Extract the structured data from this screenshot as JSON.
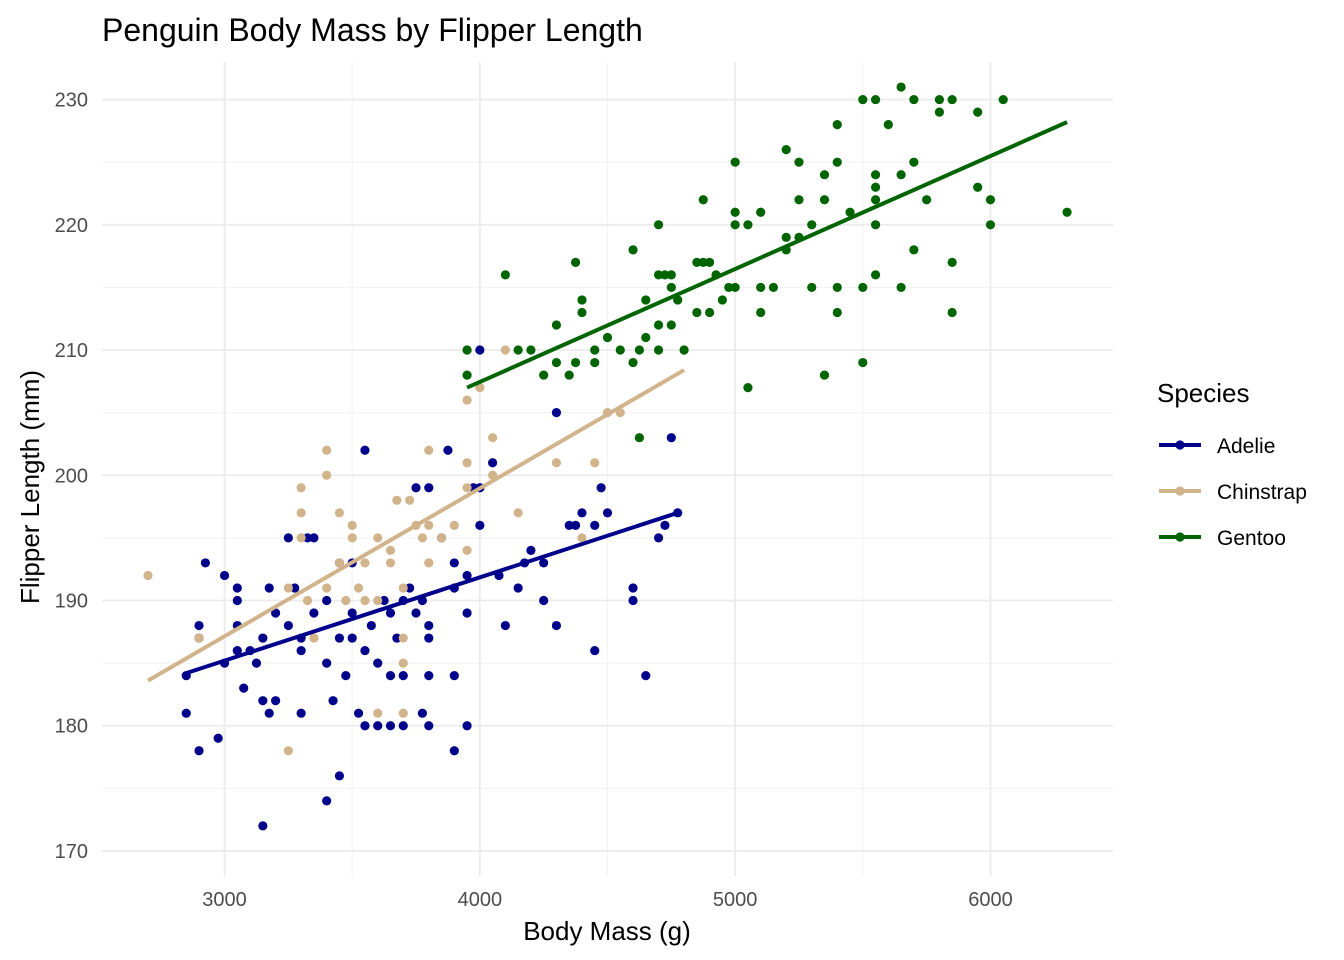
{
  "chart_data": {
    "type": "scatter",
    "title": "Penguin Body Mass by Flipper Length",
    "xlabel": "Body Mass (g)",
    "ylabel": "Flipper Length (mm)",
    "xlim": [
      2520,
      6480
    ],
    "ylim": [
      168,
      233
    ],
    "x_ticks": [
      3000,
      4000,
      5000,
      6000
    ],
    "y_ticks": [
      170,
      180,
      190,
      200,
      210,
      220,
      230
    ],
    "grid": true,
    "legend": {
      "title": "Species",
      "position": "right"
    },
    "series": [
      {
        "name": "Adelie",
        "color": "#00008b",
        "trend": [
          [
            2850,
            184.2
          ],
          [
            4775,
            197.0
          ]
        ],
        "points": [
          [
            2850,
            184
          ],
          [
            2850,
            181
          ],
          [
            2900,
            188
          ],
          [
            2900,
            187
          ],
          [
            2900,
            178
          ],
          [
            2925,
            193
          ],
          [
            2975,
            179
          ],
          [
            3000,
            185
          ],
          [
            3000,
            192
          ],
          [
            3050,
            191
          ],
          [
            3050,
            190
          ],
          [
            3050,
            188
          ],
          [
            3050,
            186
          ],
          [
            3075,
            183
          ],
          [
            3100,
            186
          ],
          [
            3125,
            185
          ],
          [
            3150,
            187
          ],
          [
            3150,
            182
          ],
          [
            3150,
            172
          ],
          [
            3175,
            191
          ],
          [
            3175,
            181
          ],
          [
            3200,
            189
          ],
          [
            3200,
            182
          ],
          [
            3250,
            195
          ],
          [
            3250,
            188
          ],
          [
            3275,
            191
          ],
          [
            3300,
            187
          ],
          [
            3300,
            186
          ],
          [
            3300,
            181
          ],
          [
            3325,
            195
          ],
          [
            3350,
            189
          ],
          [
            3350,
            195
          ],
          [
            3400,
            190
          ],
          [
            3400,
            185
          ],
          [
            3400,
            174
          ],
          [
            3425,
            182
          ],
          [
            3450,
            187
          ],
          [
            3450,
            193
          ],
          [
            3450,
            176
          ],
          [
            3475,
            184
          ],
          [
            3500,
            189
          ],
          [
            3500,
            193
          ],
          [
            3500,
            187
          ],
          [
            3525,
            181
          ],
          [
            3550,
            202
          ],
          [
            3550,
            180
          ],
          [
            3550,
            186
          ],
          [
            3575,
            188
          ],
          [
            3600,
            180
          ],
          [
            3600,
            185
          ],
          [
            3625,
            190
          ],
          [
            3650,
            189
          ],
          [
            3650,
            184
          ],
          [
            3650,
            180
          ],
          [
            3675,
            187
          ],
          [
            3700,
            190
          ],
          [
            3700,
            184
          ],
          [
            3700,
            180
          ],
          [
            3725,
            191
          ],
          [
            3750,
            199
          ],
          [
            3750,
            189
          ],
          [
            3775,
            190
          ],
          [
            3775,
            181
          ],
          [
            3800,
            199
          ],
          [
            3800,
            188
          ],
          [
            3800,
            187
          ],
          [
            3800,
            184
          ],
          [
            3800,
            180
          ],
          [
            3850,
            195
          ],
          [
            3875,
            202
          ],
          [
            3900,
            193
          ],
          [
            3900,
            191
          ],
          [
            3900,
            184
          ],
          [
            3900,
            178
          ],
          [
            3950,
            192
          ],
          [
            3950,
            189
          ],
          [
            3950,
            180
          ],
          [
            3975,
            199
          ],
          [
            4000,
            210
          ],
          [
            4000,
            199
          ],
          [
            4000,
            196
          ],
          [
            4050,
            201
          ],
          [
            4075,
            192
          ],
          [
            4100,
            188
          ],
          [
            4150,
            191
          ],
          [
            4175,
            193
          ],
          [
            4200,
            194
          ],
          [
            4250,
            193
          ],
          [
            4250,
            190
          ],
          [
            4300,
            205
          ],
          [
            4300,
            188
          ],
          [
            4350,
            196
          ],
          [
            4375,
            196
          ],
          [
            4400,
            197
          ],
          [
            4450,
            196
          ],
          [
            4450,
            186
          ],
          [
            4475,
            199
          ],
          [
            4500,
            197
          ],
          [
            4600,
            191
          ],
          [
            4600,
            190
          ],
          [
            4650,
            184
          ],
          [
            4700,
            195
          ],
          [
            4725,
            196
          ],
          [
            4750,
            203
          ],
          [
            4775,
            197
          ]
        ]
      },
      {
        "name": "Chinstrap",
        "color": "#d2b48c",
        "trend": [
          [
            2700,
            183.6
          ],
          [
            4800,
            208.4
          ]
        ],
        "points": [
          [
            2700,
            192
          ],
          [
            2900,
            187
          ],
          [
            3250,
            178
          ],
          [
            3250,
            191
          ],
          [
            3300,
            195
          ],
          [
            3300,
            197
          ],
          [
            3300,
            199
          ],
          [
            3325,
            190
          ],
          [
            3350,
            187
          ],
          [
            3400,
            191
          ],
          [
            3400,
            200
          ],
          [
            3400,
            202
          ],
          [
            3450,
            197
          ],
          [
            3450,
            193
          ],
          [
            3475,
            190
          ],
          [
            3500,
            196
          ],
          [
            3500,
            195
          ],
          [
            3525,
            191
          ],
          [
            3550,
            193
          ],
          [
            3550,
            190
          ],
          [
            3600,
            190
          ],
          [
            3600,
            181
          ],
          [
            3600,
            195
          ],
          [
            3650,
            193
          ],
          [
            3650,
            194
          ],
          [
            3675,
            198
          ],
          [
            3700,
            181
          ],
          [
            3700,
            185
          ],
          [
            3700,
            187
          ],
          [
            3700,
            191
          ],
          [
            3725,
            198
          ],
          [
            3750,
            196
          ],
          [
            3775,
            195
          ],
          [
            3800,
            193
          ],
          [
            3800,
            196
          ],
          [
            3800,
            202
          ],
          [
            3800,
            193
          ],
          [
            3850,
            195
          ],
          [
            3900,
            196
          ],
          [
            3950,
            199
          ],
          [
            3950,
            201
          ],
          [
            3950,
            210
          ],
          [
            3950,
            206
          ],
          [
            3950,
            194
          ],
          [
            4000,
            207
          ],
          [
            4050,
            200
          ],
          [
            4050,
            203
          ],
          [
            4100,
            210
          ],
          [
            4150,
            197
          ],
          [
            4300,
            201
          ],
          [
            4400,
            195
          ],
          [
            4450,
            201
          ],
          [
            4500,
            205
          ],
          [
            4550,
            205
          ],
          [
            4800,
            210
          ]
        ]
      },
      {
        "name": "Gentoo",
        "color": "#006400",
        "trend": [
          [
            3950,
            207.0
          ],
          [
            6300,
            228.2
          ]
        ],
        "points": [
          [
            3950,
            210
          ],
          [
            3950,
            208
          ],
          [
            4100,
            216
          ],
          [
            4150,
            210
          ],
          [
            4200,
            210
          ],
          [
            4250,
            208
          ],
          [
            4300,
            209
          ],
          [
            4300,
            212
          ],
          [
            4350,
            208
          ],
          [
            4375,
            209
          ],
          [
            4375,
            217
          ],
          [
            4400,
            214
          ],
          [
            4400,
            213
          ],
          [
            4450,
            209
          ],
          [
            4450,
            210
          ],
          [
            4500,
            211
          ],
          [
            4550,
            210
          ],
          [
            4600,
            218
          ],
          [
            4600,
            209
          ],
          [
            4625,
            210
          ],
          [
            4625,
            203
          ],
          [
            4650,
            214
          ],
          [
            4650,
            211
          ],
          [
            4700,
            212
          ],
          [
            4700,
            210
          ],
          [
            4700,
            216
          ],
          [
            4700,
            220
          ],
          [
            4725,
            216
          ],
          [
            4750,
            215
          ],
          [
            4750,
            212
          ],
          [
            4750,
            216
          ],
          [
            4775,
            214
          ],
          [
            4800,
            210
          ],
          [
            4850,
            213
          ],
          [
            4850,
            217
          ],
          [
            4875,
            222
          ],
          [
            4875,
            217
          ],
          [
            4900,
            213
          ],
          [
            4900,
            217
          ],
          [
            4925,
            216
          ],
          [
            4950,
            214
          ],
          [
            4975,
            215
          ],
          [
            5000,
            225
          ],
          [
            5000,
            221
          ],
          [
            5000,
            220
          ],
          [
            5000,
            215
          ],
          [
            5050,
            220
          ],
          [
            5050,
            207
          ],
          [
            5100,
            221
          ],
          [
            5100,
            213
          ],
          [
            5100,
            215
          ],
          [
            5150,
            215
          ],
          [
            5200,
            226
          ],
          [
            5200,
            219
          ],
          [
            5200,
            218
          ],
          [
            5250,
            225
          ],
          [
            5250,
            222
          ],
          [
            5250,
            219
          ],
          [
            5300,
            220
          ],
          [
            5300,
            215
          ],
          [
            5350,
            224
          ],
          [
            5350,
            208
          ],
          [
            5350,
            222
          ],
          [
            5400,
            228
          ],
          [
            5400,
            213
          ],
          [
            5400,
            215
          ],
          [
            5400,
            225
          ],
          [
            5450,
            221
          ],
          [
            5500,
            230
          ],
          [
            5500,
            215
          ],
          [
            5500,
            209
          ],
          [
            5550,
            230
          ],
          [
            5550,
            224
          ],
          [
            5550,
            220
          ],
          [
            5550,
            223
          ],
          [
            5550,
            216
          ],
          [
            5550,
            222
          ],
          [
            5600,
            228
          ],
          [
            5650,
            231
          ],
          [
            5650,
            215
          ],
          [
            5650,
            224
          ],
          [
            5700,
            230
          ],
          [
            5700,
            218
          ],
          [
            5700,
            225
          ],
          [
            5750,
            222
          ],
          [
            5800,
            230
          ],
          [
            5800,
            229
          ],
          [
            5850,
            230
          ],
          [
            5850,
            213
          ],
          [
            5850,
            217
          ],
          [
            5950,
            229
          ],
          [
            5950,
            223
          ],
          [
            6000,
            222
          ],
          [
            6000,
            220
          ],
          [
            6050,
            230
          ],
          [
            6300,
            221
          ]
        ]
      }
    ]
  }
}
